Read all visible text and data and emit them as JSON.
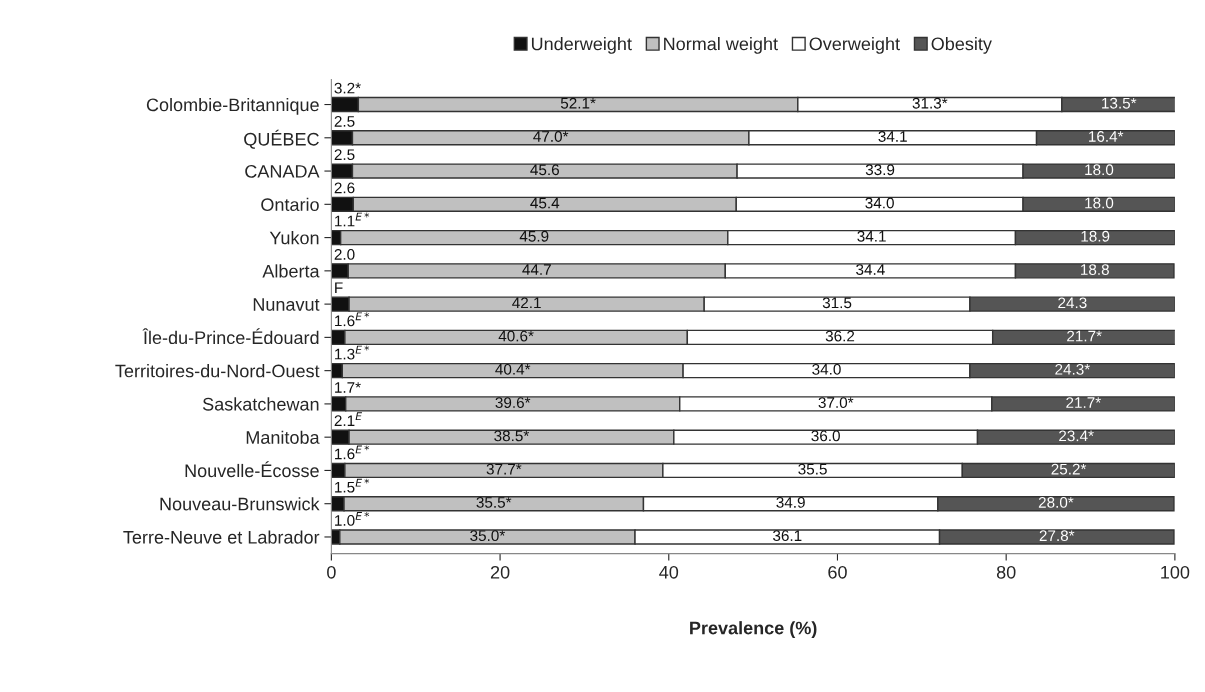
{
  "chart_data": {
    "type": "bar",
    "orientation": "horizontal",
    "stacked": true,
    "xlabel": "Prevalence (%)",
    "categories": [
      "Colombie-Britannique",
      "QUÉBEC",
      "CANADA",
      "Ontario",
      "Yukon",
      "Alberta",
      "Nunavut",
      "Île-du-Prince-Édouard",
      "Territoires-du-Nord-Ouest",
      "Saskatchewan",
      "Manitoba",
      "Nouvelle-Écosse",
      "Nouveau-Brunswick",
      "Terre-Neuve et Labrador"
    ],
    "series": [
      {
        "name": "Underweight",
        "color": "#111111",
        "values": [
          3.2,
          2.5,
          2.5,
          2.6,
          1.1,
          2.0,
          2.1,
          1.6,
          1.3,
          1.7,
          2.1,
          1.6,
          1.5,
          1.0
        ],
        "value_labels": [
          "3.2*",
          "2.5",
          "2.5",
          "2.6",
          "1.1$^{E*}$",
          "2.0",
          "F",
          "1.6$^{E*}$",
          "1.3$^{E*}$",
          "1.7*",
          "2.1$^{E}$",
          "1.6$^{E*}$",
          "1.5$^{E*}$",
          "1.0$^{E*}$"
        ]
      },
      {
        "name": "Normal weight",
        "color": "#c0c0c0",
        "values": [
          52.1,
          47.0,
          45.6,
          45.4,
          45.9,
          44.7,
          42.1,
          40.6,
          40.4,
          39.6,
          38.5,
          37.7,
          35.5,
          35.0
        ],
        "value_labels": [
          "52.1*",
          "47.0*",
          "45.6",
          "45.4",
          "45.9",
          "44.7",
          "42.1",
          "40.6*",
          "40.4*",
          "39.6*",
          "38.5*",
          "37.7*",
          "35.5*",
          "35.0*"
        ]
      },
      {
        "name": "Overweight",
        "color": "#ffffff",
        "values": [
          31.3,
          34.1,
          33.9,
          34.0,
          34.1,
          34.4,
          31.5,
          36.2,
          34.0,
          37.0,
          36.0,
          35.5,
          34.9,
          36.1
        ],
        "value_labels": [
          "31.3*",
          "34.1",
          "33.9",
          "34.0",
          "34.1",
          "34.4",
          "31.5",
          "36.2",
          "34.0",
          "37.0*",
          "36.0",
          "35.5",
          "34.9",
          "36.1"
        ]
      },
      {
        "name": "Obesity",
        "color": "#555555",
        "values": [
          13.5,
          16.4,
          18.0,
          18.0,
          18.9,
          18.8,
          24.3,
          21.7,
          24.3,
          21.7,
          23.4,
          25.2,
          28.0,
          27.8
        ],
        "value_labels": [
          "13.5*",
          "16.4*",
          "18.0",
          "18.0",
          "18.9",
          "18.8",
          "24.3",
          "21.7*",
          "24.3*",
          "21.7*",
          "23.4*",
          "25.2*",
          "28.0*",
          "27.8*"
        ]
      }
    ],
    "xlim": [
      0,
      100
    ],
    "xticks": [
      0,
      20,
      40,
      60,
      80,
      100
    ],
    "grid": false,
    "legend": "top"
  }
}
